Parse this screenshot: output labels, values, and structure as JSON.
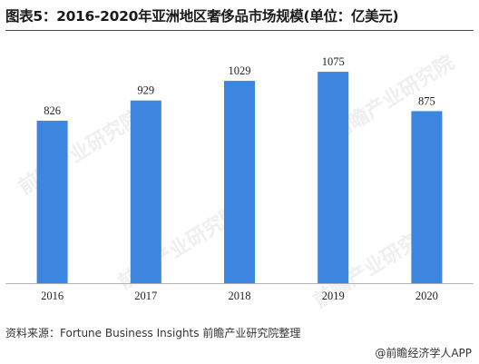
{
  "title": "图表5：2016-2020年亚洲地区奢侈品市场规模(单位：亿美元)",
  "source": "资料来源：Fortune Business Insights 前瞻产业研究院整理",
  "brand": "@前瞻经济学人APP",
  "watermark": "前瞻产业研究院",
  "colors": {
    "bar": "#3d86e0",
    "axis": "#b3b3b3",
    "text": "#222222"
  },
  "chart_data": {
    "type": "bar",
    "categories": [
      "2016",
      "2017",
      "2018",
      "2019",
      "2020"
    ],
    "values": [
      826,
      929,
      1029,
      1075,
      875
    ],
    "ylim": [
      0,
      1200
    ],
    "grid": false,
    "legend": "none"
  }
}
